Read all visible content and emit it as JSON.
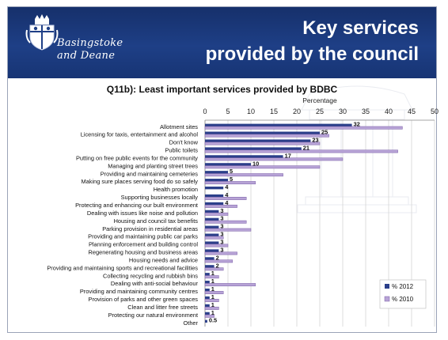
{
  "header": {
    "org_line1": "Basingstoke",
    "org_line2": "and Deane",
    "title_line1": "Key services",
    "title_line2": "provided by the council",
    "logo_icon": "council-crest-icon"
  },
  "colors": {
    "banner": "#1e3f86",
    "series_2012": "#2b3f8a",
    "series_2010": "#b7a3d6",
    "series_2010_edge": "#7a5fa7"
  },
  "chart_data": {
    "type": "bar",
    "orientation": "horizontal",
    "title": "Q11b): Least important services provided by BDBC",
    "xlabel": "Percentage",
    "xlim": [
      0,
      50
    ],
    "xticks": [
      0,
      5,
      10,
      15,
      20,
      25,
      30,
      35,
      40,
      45,
      50
    ],
    "grid": true,
    "legend_position": "bottom-right",
    "categories": [
      "Allotment sites",
      "Licensing for taxis, entertainment and alcohol",
      "Don't know",
      "Public toilets",
      "Putting on free public events for the community",
      "Managing and planting street trees",
      "Providing and maintaining cemeteries",
      "Making sure places serving food do so safely",
      "Health promotion",
      "Supporting businesses locally",
      "Protecting and enhancing our built environment",
      "Dealing with issues like noise and pollution",
      "Housing and council tax benefits",
      "Parking provision in residential areas",
      "Providing and maintaining public car parks",
      "Planning enforcement and building control",
      "Regenerating housing and business areas",
      "Housing needs and advice",
      "Providing and maintaining sports and recreational facilities",
      "Collecting recycling and rubbish bins",
      "Dealing with anti-social behaviour",
      "Providing and maintaining community centres",
      "Provision of parks and other green spaces",
      "Clean and litter free streets",
      "Protecting our natural environment",
      "Other"
    ],
    "series": [
      {
        "name": "% 2012",
        "values": [
          32,
          25,
          23,
          21,
          17,
          10,
          5,
          5,
          4,
          4,
          4,
          3,
          3,
          3,
          3,
          3,
          3,
          2,
          2,
          1,
          1,
          1,
          1,
          1,
          1,
          0.5
        ],
        "labels": [
          "32",
          "25",
          "23",
          "21",
          "17",
          "10",
          "5",
          "5",
          "4",
          "4",
          "4",
          "3",
          "3",
          "3",
          "3",
          "3",
          "3",
          "2",
          "2",
          "1",
          "1",
          "1",
          "1",
          "1",
          "1",
          "0.5"
        ]
      },
      {
        "name": "% 2010",
        "values": [
          43,
          27,
          25,
          42,
          30,
          25,
          17,
          11,
          0,
          9,
          7,
          5,
          9,
          10,
          4,
          5,
          7,
          6,
          4,
          3,
          11,
          4,
          3,
          3,
          2,
          0
        ]
      }
    ]
  }
}
